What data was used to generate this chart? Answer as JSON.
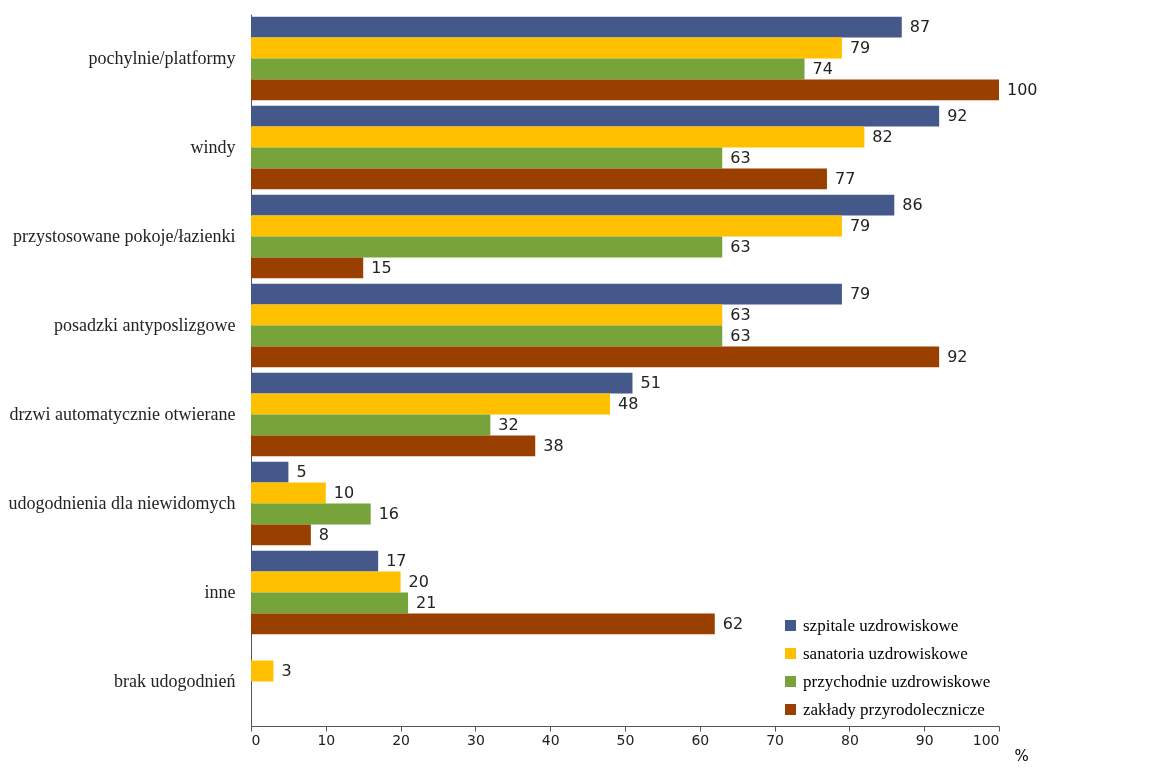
{
  "chart_data": {
    "type": "bar",
    "orientation": "horizontal",
    "categories": [
      "pochylnie/platformy",
      "windy",
      "przystosowane pokoje/łazienki",
      "posadzki antyposlizgowe",
      "drzwi automatycznie otwierane",
      "udogodnienia dla niewidomych",
      "inne",
      "brak udogodnień"
    ],
    "series": [
      {
        "name": "szpitale uzdrowiskowe",
        "color": "#44588a",
        "values": [
          87,
          92,
          86,
          79,
          51,
          5,
          17,
          null
        ]
      },
      {
        "name": "sanatoria uzdrowiskowe",
        "color": "#ffc000",
        "values": [
          79,
          82,
          79,
          63,
          48,
          10,
          20,
          3
        ]
      },
      {
        "name": "przychodnie uzdrowiskowe",
        "color": "#77a33b",
        "values": [
          74,
          63,
          63,
          63,
          32,
          16,
          21,
          null
        ]
      },
      {
        "name": "zakłady przyrodolecznicze",
        "color": "#993f00",
        "values": [
          100,
          77,
          15,
          92,
          38,
          8,
          62,
          null
        ]
      }
    ],
    "xlabel": "%",
    "xlim": [
      0,
      100
    ],
    "xticks": [
      0,
      10,
      20,
      30,
      40,
      50,
      60,
      70,
      80,
      90,
      100
    ],
    "data_labels": true,
    "legend": "bottom right",
    "grid": false
  }
}
